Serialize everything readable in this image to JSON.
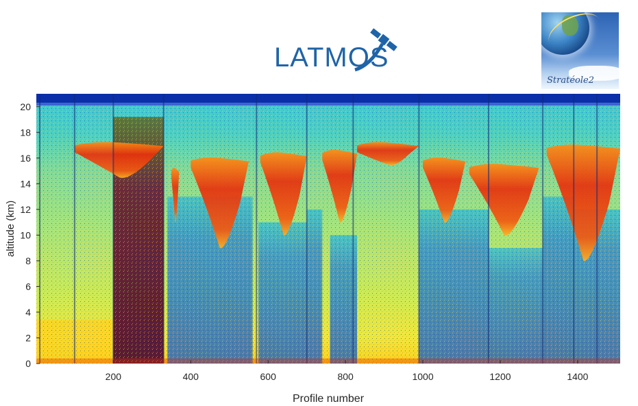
{
  "logos": {
    "latmos_text": "LATMOS",
    "strateole_text": "Stratéole2"
  },
  "colors": {
    "background_field": "#c8e85a",
    "stratosphere_field": "#2fc6d6",
    "top_band": "#0b2fa8",
    "cloud_core": "#e02a0a",
    "cloud_edge": "#ff9a16",
    "noise_blue": "#2b74c8",
    "noise_dark": "#3a1030",
    "surface_yellow": "#ffd21a"
  },
  "chart_data": {
    "type": "heatmap",
    "title": "",
    "xlabel": "Profile number",
    "ylabel": "altitude (km)",
    "xlim": [
      1,
      1510
    ],
    "ylim": [
      0,
      21
    ],
    "x_ticks": [
      "200",
      "400",
      "600",
      "800",
      "1000",
      "1200",
      "1400"
    ],
    "x_tick_values": [
      200,
      400,
      600,
      800,
      1000,
      1200,
      1400
    ],
    "y_ticks": [
      "0",
      "2",
      "4",
      "6",
      "8",
      "10",
      "12",
      "14",
      "16",
      "18",
      "20"
    ],
    "y_tick_values": [
      0,
      2,
      4,
      6,
      8,
      10,
      12,
      14,
      16,
      18,
      20
    ],
    "grid": false,
    "colorbar": false,
    "profile_boundaries": [
      10,
      100,
      200,
      330,
      570,
      700,
      820,
      990,
      1170,
      1310,
      1390,
      1450
    ],
    "dark_noise_band_profiles": [
      200,
      330
    ],
    "cloud_features": [
      {
        "x_start": 100,
        "x_end": 330,
        "top_km": 17.2,
        "bottom_km": 14.5
      },
      {
        "x_start": 350,
        "x_end": 370,
        "top_km": 15.2,
        "bottom_km": 11.0
      },
      {
        "x_start": 400,
        "x_end": 550,
        "top_km": 16.0,
        "bottom_km": 9.0
      },
      {
        "x_start": 580,
        "x_end": 700,
        "top_km": 16.4,
        "bottom_km": 10.0
      },
      {
        "x_start": 740,
        "x_end": 830,
        "top_km": 16.6,
        "bottom_km": 11.0
      },
      {
        "x_start": 830,
        "x_end": 990,
        "top_km": 17.2,
        "bottom_km": 15.5
      },
      {
        "x_start": 1000,
        "x_end": 1110,
        "top_km": 16.0,
        "bottom_km": 11.0
      },
      {
        "x_start": 1120,
        "x_end": 1300,
        "top_km": 15.5,
        "bottom_km": 10.0
      },
      {
        "x_start": 1320,
        "x_end": 1510,
        "top_km": 17.0,
        "bottom_km": 8.0
      }
    ],
    "tropopause_km": 20.3
  }
}
